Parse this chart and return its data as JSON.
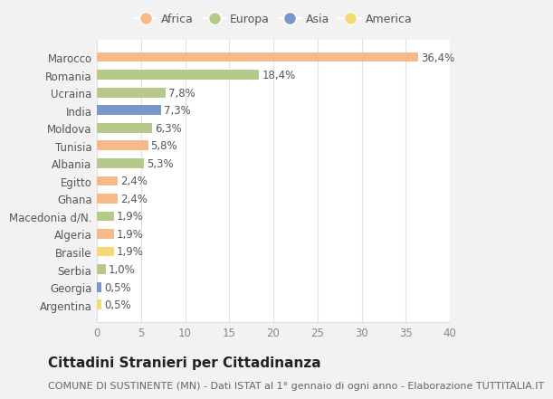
{
  "countries": [
    "Marocco",
    "Romania",
    "Ucraina",
    "India",
    "Moldova",
    "Tunisia",
    "Albania",
    "Egitto",
    "Ghana",
    "Macedonia d/N.",
    "Algeria",
    "Brasile",
    "Serbia",
    "Georgia",
    "Argentina"
  ],
  "values": [
    36.4,
    18.4,
    7.8,
    7.3,
    6.3,
    5.8,
    5.3,
    2.4,
    2.4,
    1.9,
    1.9,
    1.9,
    1.0,
    0.5,
    0.5
  ],
  "labels": [
    "36,4%",
    "18,4%",
    "7,8%",
    "7,3%",
    "6,3%",
    "5,8%",
    "5,3%",
    "2,4%",
    "2,4%",
    "1,9%",
    "1,9%",
    "1,9%",
    "1,0%",
    "0,5%",
    "0,5%"
  ],
  "colors": [
    "#f5b98a",
    "#b5c98a",
    "#b5c98a",
    "#7b96c8",
    "#b5c98a",
    "#f5b98a",
    "#b5c98a",
    "#f5b98a",
    "#f5b98a",
    "#b5c98a",
    "#f5b98a",
    "#f5d878",
    "#b5c98a",
    "#7b96c8",
    "#f5d878"
  ],
  "legend_labels": [
    "Africa",
    "Europa",
    "Asia",
    "America"
  ],
  "legend_colors": [
    "#f5b98a",
    "#b5c98a",
    "#7b96c8",
    "#f5d878"
  ],
  "title": "Cittadini Stranieri per Cittadinanza",
  "subtitle": "COMUNE DI SUSTINENTE (MN) - Dati ISTAT al 1° gennaio di ogni anno - Elaborazione TUTTITALIA.IT",
  "xlim": [
    0,
    40
  ],
  "xticks": [
    0,
    5,
    10,
    15,
    20,
    25,
    30,
    35,
    40
  ],
  "background_color": "#f2f2f2",
  "plot_bg_color": "#ffffff",
  "grid_color": "#e0e0e0",
  "label_fontsize": 8.5,
  "title_fontsize": 11,
  "subtitle_fontsize": 8,
  "bar_height": 0.55
}
